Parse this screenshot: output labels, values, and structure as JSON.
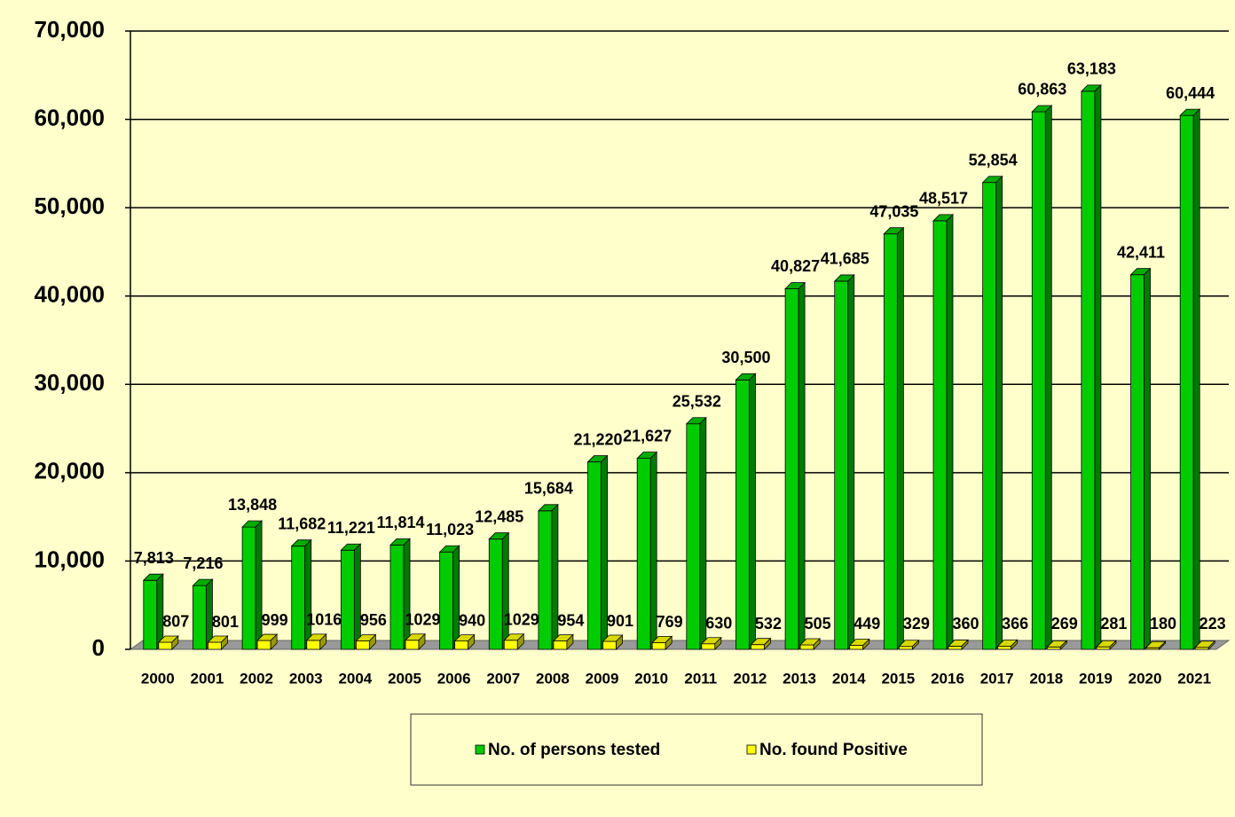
{
  "chart_data": {
    "type": "bar3d",
    "categories": [
      "2000",
      "2001",
      "2002",
      "2003",
      "2004",
      "2005",
      "2006",
      "2007",
      "2008",
      "2009",
      "2010",
      "2011",
      "2012",
      "2013",
      "2014",
      "2015",
      "2016",
      "2017",
      "2018",
      "2019",
      "2020",
      "2021"
    ],
    "series": [
      {
        "name": "No. of persons tested",
        "color": "#00cc00",
        "values": [
          7813,
          7216,
          13848,
          11682,
          11221,
          11814,
          11023,
          12485,
          15684,
          21220,
          21627,
          25532,
          30500,
          40827,
          41685,
          47035,
          48517,
          52854,
          60863,
          63183,
          42411,
          60444
        ],
        "value_labels": [
          "7,813",
          "7,216",
          "13,848",
          "11,682",
          "11,221",
          "11,814",
          "11,023",
          "12,485",
          "15,684",
          "21,220",
          "21,627",
          "25,532",
          "30,500",
          "40,827",
          "41,685",
          "47,035",
          "48,517",
          "52,854",
          "60,863",
          "63,183",
          "42,411",
          "60,444"
        ]
      },
      {
        "name": "No. found Positive",
        "color": "#ffff00",
        "values": [
          807,
          801,
          999,
          1016,
          956,
          1029,
          940,
          1029,
          954,
          901,
          769,
          630,
          532,
          505,
          449,
          329,
          360,
          366,
          269,
          281,
          180,
          223
        ]
      }
    ],
    "ylim": [
      0,
      70000
    ],
    "yticks": [
      0,
      {
        "value": 10000,
        "label": "10,000"
      },
      {
        "value": 20000,
        "label": "20,000"
      },
      {
        "value": 30000,
        "label": "30,000"
      },
      {
        "value": 40000,
        "label": "40,000"
      },
      {
        "value": 50000,
        "label": "50,000"
      },
      {
        "value": 60000,
        "label": "60,000"
      },
      {
        "value": 70000,
        "label": "70,000"
      }
    ],
    "grid": true,
    "legend": "bottom"
  }
}
